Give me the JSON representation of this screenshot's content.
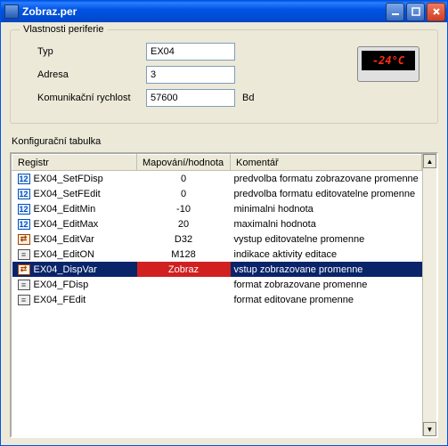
{
  "window": {
    "title": "Zobraz.per"
  },
  "fieldset": {
    "legend": "Vlastnosti periferie",
    "type_label": "Typ",
    "type_value": "EX04",
    "addr_label": "Adresa",
    "addr_value": "3",
    "speed_label": "Komunikační rychlost",
    "speed_value": "57600",
    "speed_unit": "Bd",
    "device_display": "-24°C"
  },
  "table_section_label": "Konfigurační tabulka",
  "columns": {
    "reg": "Registr",
    "map": "Mapování/hodnota",
    "com": "Komentář"
  },
  "rows": [
    {
      "icon": "num",
      "reg": "EX04_SetFDisp",
      "map": "0",
      "com": "predvolba formatu zobrazovane promenne",
      "sel": false
    },
    {
      "icon": "num",
      "reg": "EX04_SetFEdit",
      "map": "0",
      "com": "predvolba formatu editovatelne promenne",
      "sel": false
    },
    {
      "icon": "num",
      "reg": "EX04_EditMin",
      "map": "-10",
      "com": "minimalni hodnota",
      "sel": false
    },
    {
      "icon": "num",
      "reg": "EX04_EditMax",
      "map": "20",
      "com": "maximalni hodnota",
      "sel": false
    },
    {
      "icon": "arr",
      "reg": "EX04_EditVar",
      "map": "D32",
      "com": "vystup editovatelne promenne",
      "sel": false
    },
    {
      "icon": "lst",
      "reg": "EX04_EditON",
      "map": "M128",
      "com": "indikace aktivity editace",
      "sel": false
    },
    {
      "icon": "arr",
      "reg": "EX04_DispVar",
      "map": "Zobraz",
      "com": "vstup zobrazovane promenne",
      "sel": true
    },
    {
      "icon": "lst",
      "reg": "EX04_FDisp",
      "map": "",
      "com": "format zobrazovane promenne",
      "sel": false
    },
    {
      "icon": "lst",
      "reg": "EX04_FEdit",
      "map": "",
      "com": "format editovane promenne",
      "sel": false
    }
  ],
  "icon_glyphs": {
    "num": "12",
    "arr": "⇄",
    "lst": "≡"
  },
  "colors": {
    "titlebar_grad": [
      "#0059e5",
      "#0047c9"
    ],
    "selection_bg": "#0a246a",
    "selection_map_bg": "#d02020",
    "panel_bg": "#ece9d8",
    "input_border": "#7f9db9"
  }
}
